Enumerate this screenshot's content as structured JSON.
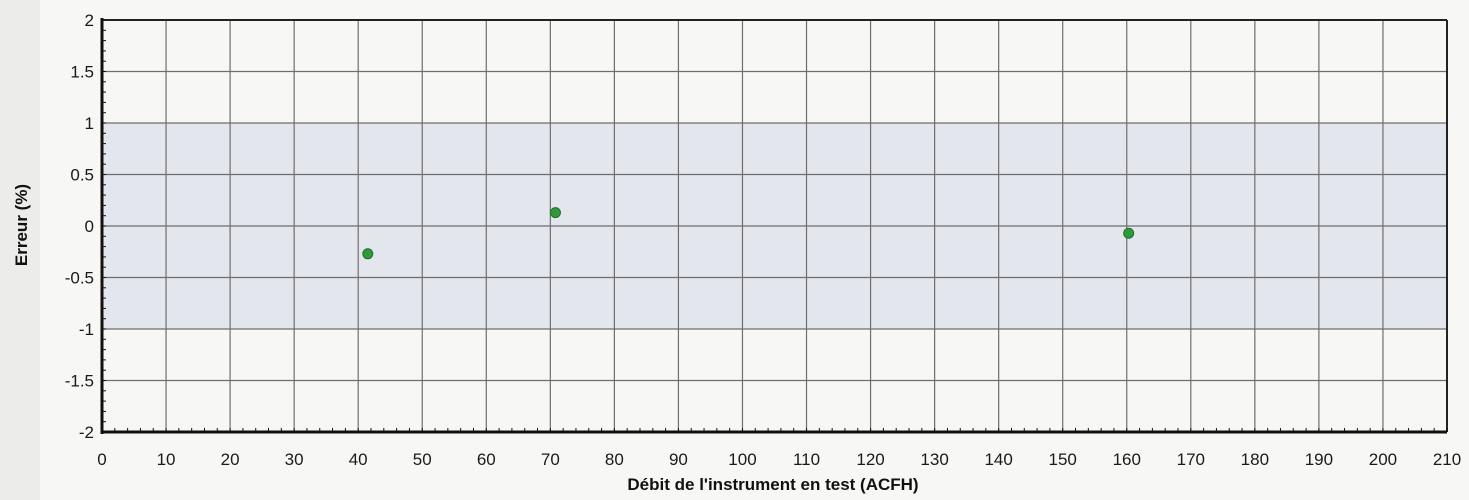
{
  "chart_data": {
    "type": "scatter",
    "xlabel": "Débit de l'instrument en test (ACFH)",
    "ylabel": "Erreur (%)",
    "xlim": [
      0,
      210
    ],
    "ylim": [
      -2,
      2
    ],
    "x_ticks": [
      0,
      10,
      20,
      30,
      40,
      50,
      60,
      70,
      80,
      90,
      100,
      110,
      120,
      130,
      140,
      150,
      160,
      170,
      180,
      190,
      200,
      210
    ],
    "y_ticks": [
      2,
      1.5,
      1,
      0.5,
      0,
      -0.5,
      -1,
      -1.5,
      -2
    ],
    "grid": true,
    "tolerance_band": {
      "lower": -1,
      "upper": 1,
      "color": "#dfe3ea"
    },
    "series": [
      {
        "color": "#2e9a3a",
        "points": [
          {
            "x": 41.5,
            "y": -0.27
          },
          {
            "x": 70.8,
            "y": 0.13
          },
          {
            "x": 160.3,
            "y": -0.07
          }
        ]
      }
    ]
  }
}
